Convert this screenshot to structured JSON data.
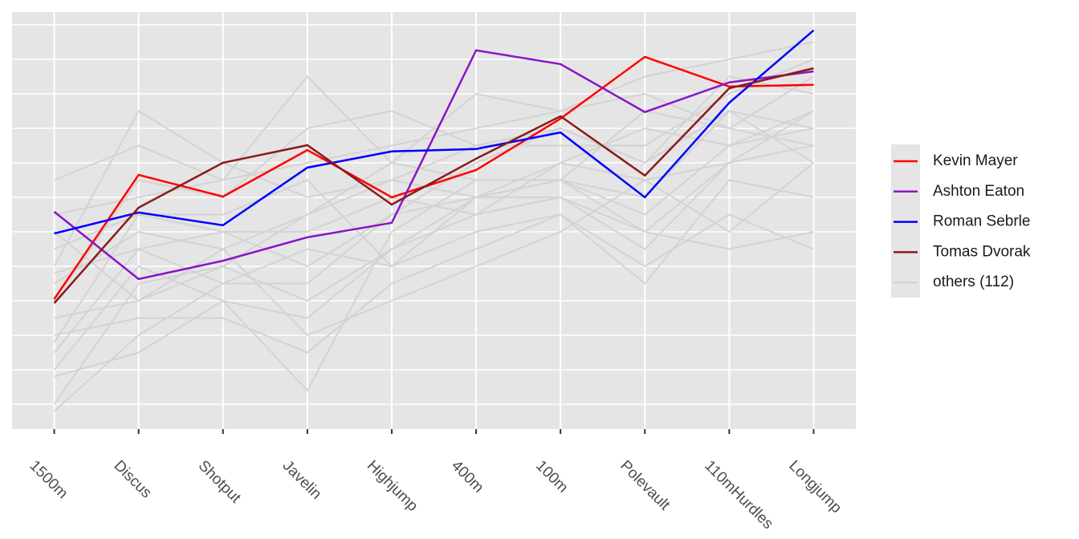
{
  "chart_data": {
    "type": "parallel",
    "categories": [
      "1500m",
      "Discus",
      "Shotput",
      "Javelin",
      "Highjump",
      "400m",
      "100m",
      "Polevault",
      "110mHurdles",
      "Longjump"
    ],
    "ylim": [
      -0.72,
      11.37
    ],
    "ygrid": [
      0,
      1,
      2,
      3,
      4,
      5,
      6,
      7,
      8,
      9,
      10,
      11
    ],
    "series": [
      {
        "name": "Kevin Mayer",
        "color": "#ff0000",
        "values": [
          3.05,
          6.65,
          6.02,
          7.37,
          6.0,
          6.79,
          8.28,
          10.07,
          9.21,
          9.26
        ]
      },
      {
        "name": "Ashton Eaton",
        "color": "#8a14c8",
        "values": [
          5.58,
          3.63,
          4.16,
          4.84,
          5.26,
          10.26,
          9.86,
          8.47,
          9.33,
          9.65
        ]
      },
      {
        "name": "Roman Sebrle",
        "color": "#0000ff",
        "values": [
          4.95,
          5.56,
          5.19,
          6.86,
          7.33,
          7.4,
          7.88,
          6.0,
          8.74,
          10.84
        ]
      },
      {
        "name": "Tomas Dvorak",
        "color": "#8b1a1a",
        "values": [
          2.93,
          5.7,
          7.0,
          7.51,
          5.79,
          7.12,
          8.35,
          6.63,
          9.16,
          9.74
        ]
      }
    ],
    "others": {
      "name": "others (112)",
      "color": "#d3d3d3",
      "lines": [
        [
          1.5,
          4.5,
          5.0,
          4.0,
          5.5,
          6.0,
          6.5,
          5.5,
          7.5,
          8.0
        ],
        [
          3.5,
          5.0,
          4.5,
          5.5,
          6.5,
          6.0,
          7.0,
          6.5,
          7.0,
          7.5
        ],
        [
          0.0,
          3.5,
          4.0,
          3.0,
          4.5,
          5.5,
          6.0,
          5.0,
          7.0,
          8.5
        ],
        [
          6.5,
          7.5,
          6.5,
          9.5,
          7.0,
          9.0,
          8.5,
          9.5,
          10.0,
          10.5
        ],
        [
          2.0,
          2.5,
          2.5,
          1.5,
          3.5,
          4.5,
          5.5,
          4.0,
          5.5,
          4.5
        ],
        [
          4.0,
          8.5,
          7.0,
          6.0,
          6.5,
          7.5,
          8.0,
          7.0,
          8.5,
          8.0
        ],
        [
          -0.2,
          2.0,
          3.5,
          4.5,
          4.0,
          5.0,
          5.5,
          3.5,
          6.5,
          6.0
        ],
        [
          5.5,
          6.0,
          6.5,
          7.0,
          7.5,
          8.0,
          8.5,
          9.0,
          8.0,
          9.5
        ],
        [
          1.0,
          4.0,
          3.0,
          0.4,
          5.0,
          6.5,
          6.5,
          6.0,
          8.5,
          7.0
        ],
        [
          3.0,
          6.5,
          6.0,
          8.0,
          8.5,
          7.5,
          7.5,
          7.5,
          9.0,
          10.0
        ],
        [
          2.5,
          3.0,
          4.5,
          2.0,
          3.0,
          4.0,
          5.0,
          6.5,
          5.0,
          7.0
        ],
        [
          4.5,
          5.5,
          5.0,
          5.0,
          6.0,
          5.5,
          7.0,
          8.0,
          7.5,
          8.5
        ],
        [
          0.8,
          1.5,
          3.0,
          2.5,
          4.5,
          6.0,
          6.5,
          5.0,
          4.5,
          5.0
        ],
        [
          3.8,
          4.5,
          3.5,
          3.5,
          5.5,
          7.0,
          8.0,
          7.0,
          9.5,
          9.0
        ],
        [
          1.8,
          5.5,
          5.5,
          6.5,
          4.0,
          6.0,
          6.0,
          4.5,
          7.0,
          7.5
        ],
        [
          5.0,
          3.0,
          4.0,
          5.5,
          7.0,
          6.5,
          6.5,
          8.5,
          8.0,
          7.5
        ]
      ]
    }
  }
}
